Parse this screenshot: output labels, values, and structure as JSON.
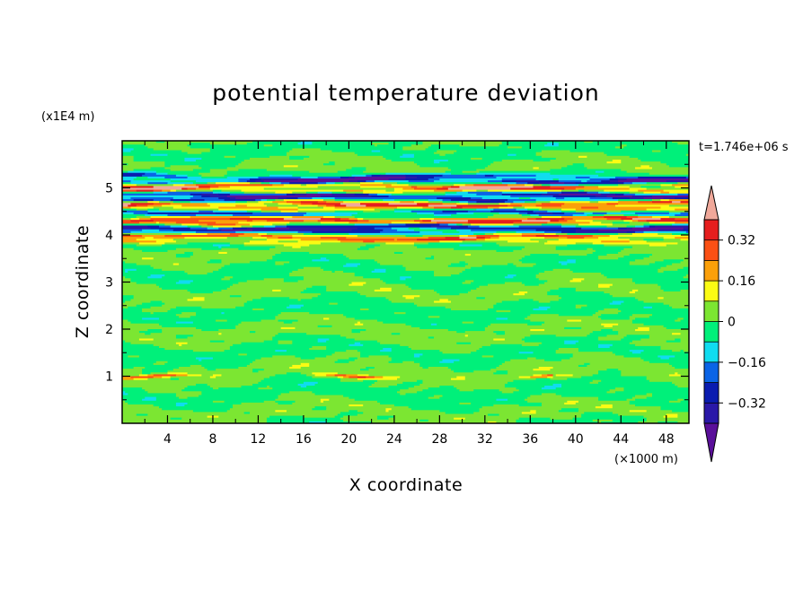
{
  "chart_data": {
    "type": "heatmap",
    "title": "potential temperature deviation",
    "xlabel": "X coordinate",
    "ylabel": "Z coordinate",
    "x_unit": "(×1000 m)",
    "y_unit": "(x1E4 m)",
    "time_label": "t=1.746e+06 s",
    "xlim": [
      0,
      50
    ],
    "ylim": [
      0,
      6
    ],
    "x_ticks": [
      "4",
      "8",
      "12",
      "16",
      "20",
      "24",
      "28",
      "32",
      "36",
      "40",
      "44",
      "48"
    ],
    "y_ticks": [
      "1",
      "2",
      "3",
      "4",
      "5"
    ],
    "colorbar": {
      "levels": [
        -0.4,
        -0.32,
        -0.24,
        -0.16,
        -0.08,
        0,
        0.08,
        0.16,
        0.24,
        0.32,
        0.4
      ],
      "tick_labels": [
        "0.32",
        "0.16",
        "0",
        "−0.16",
        "−0.32"
      ],
      "colors": [
        "#5a0f9a",
        "#2a18a8",
        "#0a1cb0",
        "#0a64e6",
        "#10dcf0",
        "#00f07a",
        "#7ce632",
        "#fbfb14",
        "#fba00a",
        "#fb5014",
        "#e61e1e",
        "#f0a89a"
      ]
    },
    "bands": [
      {
        "z": 5.3,
        "value": -0.06
      },
      {
        "z": 5.22,
        "value": -0.3
      },
      {
        "z": 5.14,
        "value": -0.45
      },
      {
        "z": 5.04,
        "value": 0.45
      },
      {
        "z": 4.94,
        "value": 0.3
      },
      {
        "z": 4.86,
        "value": -0.45
      },
      {
        "z": 4.76,
        "value": -0.3
      },
      {
        "z": 4.66,
        "value": 0.45
      },
      {
        "z": 4.56,
        "value": 0.2
      },
      {
        "z": 4.48,
        "value": -0.35
      },
      {
        "z": 4.4,
        "value": -0.1
      },
      {
        "z": 4.32,
        "value": 0.45
      },
      {
        "z": 4.24,
        "value": 0.25
      },
      {
        "z": 4.16,
        "value": -0.45
      },
      {
        "z": 4.06,
        "value": -0.3
      },
      {
        "z": 3.96,
        "value": 0.4
      },
      {
        "z": 3.86,
        "value": 0.2
      },
      {
        "z": 3.78,
        "value": -0.08
      },
      {
        "z": 1.0,
        "value": 0.3
      }
    ]
  }
}
